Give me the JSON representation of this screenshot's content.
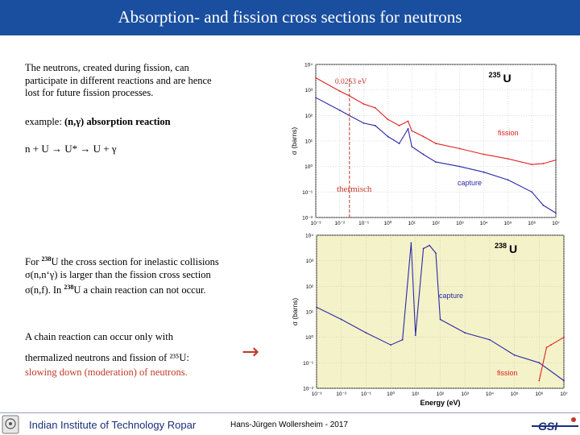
{
  "slide": {
    "title": "Absorption- and fission cross sections for neutrons",
    "intro_text": "The neutrons, created during fission,  can participate in different reactions and are hence lost for future fission processes.",
    "example_prefix": "example: ",
    "example_bold": "(n,γ) absorption reaction",
    "reaction": "n + U → U* → U + γ",
    "u238_sup": "238",
    "u238_text_a": "For ",
    "u238_text_b": "U the cross section for inelastic collisions σ(n,n‘γ) is larger than the fission cross section σ(n,f). In ",
    "u238_text_c": "U a chain reaction can not occur.",
    "chain_text": "A chain reaction can occur only with",
    "thermal_text": "thermalized neutrons and fission of ²³⁵U:",
    "slowing_text": "slowing down (moderation) of neutrons.",
    "arrow": "→"
  },
  "footer": {
    "institute": "Indian Institute of Technology Ropar",
    "author": "Hans-Jürgen Wollersheim - 2017",
    "logo_right_text": "GSI"
  },
  "colors": {
    "title_bar": "#1a4fa0",
    "fission": "#e02020",
    "capture": "#2a2aa8",
    "annotation": "#c0392b",
    "plot2_bg": "#f4f2c8"
  },
  "chart_data": [
    {
      "type": "line",
      "isotope_mass": "235",
      "isotope_symbol": "U",
      "ylabel": "σ (barns)",
      "xlabel": "",
      "log_x": true,
      "log_y": true,
      "xlim": [
        0.001,
        10000000
      ],
      "ylim": [
        0.01,
        10000
      ],
      "y_ticks": [
        "10⁴",
        "10³",
        "10²",
        "10¹",
        "10⁰",
        "10⁻¹",
        "10⁻²"
      ],
      "x_ticks": [
        "10⁻³",
        "10⁻²",
        "10⁻¹",
        "10⁰",
        "10¹",
        "10²",
        "10³",
        "10⁴",
        "10⁵",
        "10⁶",
        "10⁷"
      ],
      "marker_label": "0.0253 eV",
      "marker_x": 0.0253,
      "thermal_label": "thermisch",
      "series": [
        {
          "name": "fission",
          "x": [
            0.001,
            0.01,
            0.0253,
            0.1,
            0.3,
            1,
            3,
            7,
            10,
            30,
            100,
            1000,
            10000,
            100000,
            1000000,
            3000000,
            10000000
          ],
          "y": [
            3000,
            900,
            585,
            280,
            200,
            70,
            40,
            60,
            25,
            15,
            8,
            5,
            3,
            2,
            1.2,
            1.3,
            1.8
          ]
        },
        {
          "name": "capture",
          "x": [
            0.001,
            0.01,
            0.0253,
            0.1,
            0.3,
            1,
            3,
            7,
            10,
            30,
            100,
            1000,
            10000,
            100000,
            1000000,
            3000000,
            10000000
          ],
          "y": [
            500,
            160,
            99,
            50,
            40,
            15,
            8,
            30,
            6,
            3,
            1.5,
            1,
            0.6,
            0.3,
            0.1,
            0.03,
            0.015
          ]
        }
      ]
    },
    {
      "type": "line",
      "isotope_mass": "238",
      "isotope_symbol": "U",
      "ylabel": "σ (barns)",
      "xlabel": "Energy (eV)",
      "log_x": true,
      "log_y": true,
      "xlim": [
        0.001,
        10000000
      ],
      "ylim": [
        0.01,
        10000
      ],
      "y_ticks": [
        "10⁴",
        "10³",
        "10²",
        "10¹",
        "10⁰",
        "10⁻¹",
        "10⁻²"
      ],
      "x_ticks": [
        "10⁻³",
        "10⁻²",
        "10⁻¹",
        "10⁰",
        "10¹",
        "10²",
        "10³",
        "10⁴",
        "10⁵",
        "10⁶",
        "10⁷"
      ],
      "series": [
        {
          "name": "capture",
          "x": [
            0.001,
            0.01,
            0.1,
            1,
            3,
            6.67,
            10,
            20.9,
            36.7,
            66,
            100,
            1000,
            10000,
            100000,
            1000000,
            10000000
          ],
          "y": [
            15,
            5,
            1.5,
            0.5,
            0.8,
            5000,
            1.2,
            3000,
            4000,
            2000,
            5,
            1.5,
            0.8,
            0.2,
            0.1,
            0.02
          ]
        },
        {
          "name": "fission",
          "x": [
            1000000,
            2000000,
            3000000,
            10000000
          ],
          "y": [
            0.02,
            0.4,
            0.5,
            1.0
          ]
        }
      ]
    }
  ]
}
